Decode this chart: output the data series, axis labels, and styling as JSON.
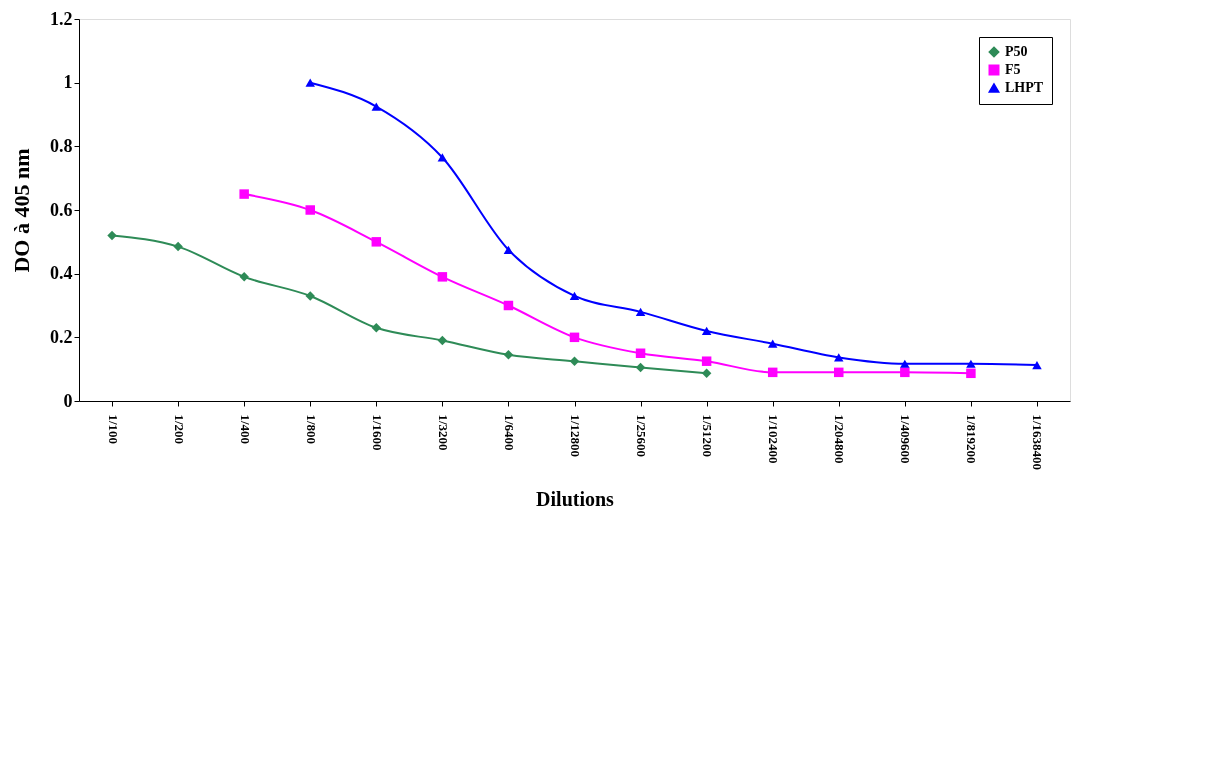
{
  "chart_data": {
    "type": "line",
    "xlabel": "Dilutions",
    "ylabel": "DO à 405 nm",
    "categories": [
      "1/100",
      "1/200",
      "1/400",
      "1/800",
      "1/1600",
      "1/3200",
      "1/6400",
      "1/12800",
      "1/25600",
      "1/51200",
      "1/102400",
      "1/204800",
      "1/409600",
      "1/819200",
      "1/1638400"
    ],
    "series": [
      {
        "name": "P50",
        "color": "#2e8b57",
        "marker": "diamond",
        "values": [
          0.52,
          0.485,
          0.39,
          0.33,
          0.23,
          0.19,
          0.145,
          0.125,
          0.105,
          0.087,
          null,
          null,
          null,
          null,
          null
        ]
      },
      {
        "name": "F5",
        "color": "#ff00ff",
        "marker": "square",
        "values": [
          null,
          null,
          0.65,
          0.6,
          0.5,
          0.39,
          0.3,
          0.2,
          0.15,
          0.125,
          0.09,
          0.09,
          0.09,
          0.087,
          null
        ]
      },
      {
        "name": "LHPT",
        "color": "#0000ff",
        "marker": "triangle",
        "values": [
          null,
          null,
          null,
          1.0,
          0.925,
          0.765,
          0.475,
          0.33,
          0.28,
          0.22,
          0.18,
          0.137,
          0.117,
          0.117,
          0.113
        ]
      }
    ],
    "ylim": [
      0,
      1.2
    ],
    "yticks": [
      0,
      0.2,
      0.4,
      0.6,
      0.8,
      1,
      1.2
    ],
    "grid": false,
    "legend": "top right",
    "line_style": "solid"
  }
}
